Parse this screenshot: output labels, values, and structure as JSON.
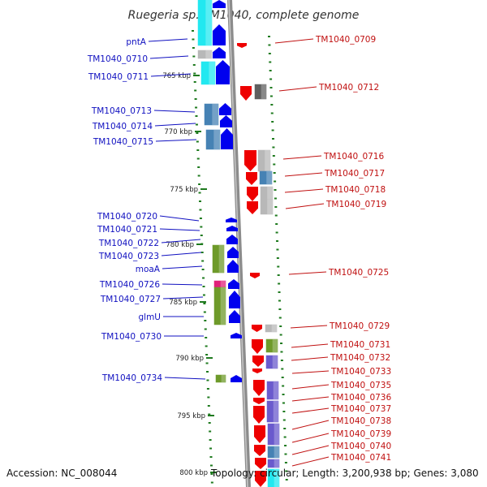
{
  "title": "Ruegeria sp. TM1040, complete genome",
  "footer": {
    "accession": "Accession: NC_008044",
    "topology": "Topology: circular; Length: 3,200,938 bp; Genes: 3,080"
  },
  "colors": {
    "left_label": "#1010c0",
    "right_label": "#c01010",
    "strand_plus": "#0000ee",
    "strand_minus": "#ee0000",
    "cyan": "#22e8f0",
    "gray": "#b8b8b8",
    "olive": "#6e9a2a",
    "purple": "#6a5acd",
    "steel": "#4682b4",
    "magenta": "#e0207a",
    "backbone": "#888888",
    "tick": "#1e7a1e"
  },
  "scale_labels": [
    "765 kbp",
    "770 kbp",
    "775 kbp",
    "780 kbp",
    "785 kbp",
    "790 kbp",
    "795 kbp",
    "800 kbp"
  ],
  "left_genes": [
    {
      "name": "pntA"
    },
    {
      "name": "TM1040_0710"
    },
    {
      "name": "TM1040_0711"
    },
    {
      "name": "TM1040_0713"
    },
    {
      "name": "TM1040_0714"
    },
    {
      "name": "TM1040_0715"
    },
    {
      "name": "TM1040_0720"
    },
    {
      "name": "TM1040_0721"
    },
    {
      "name": "TM1040_0722"
    },
    {
      "name": "TM1040_0723"
    },
    {
      "name": "moaA"
    },
    {
      "name": "TM1040_0726"
    },
    {
      "name": "TM1040_0727"
    },
    {
      "name": "glmU"
    },
    {
      "name": "TM1040_0730"
    },
    {
      "name": "TM1040_0734"
    }
  ],
  "right_genes": [
    {
      "name": "TM1040_0709"
    },
    {
      "name": "TM1040_0712"
    },
    {
      "name": "TM1040_0716"
    },
    {
      "name": "TM1040_0717"
    },
    {
      "name": "TM1040_0718"
    },
    {
      "name": "TM1040_0719"
    },
    {
      "name": "TM1040_0725"
    },
    {
      "name": "TM1040_0729"
    },
    {
      "name": "TM1040_0731"
    },
    {
      "name": "TM1040_0732"
    },
    {
      "name": "TM1040_0733"
    },
    {
      "name": "TM1040_0735"
    },
    {
      "name": "TM1040_0736"
    },
    {
      "name": "TM1040_0737"
    },
    {
      "name": "TM1040_0738"
    },
    {
      "name": "TM1040_0739"
    },
    {
      "name": "TM1040_0740"
    },
    {
      "name": "TM1040_0741"
    }
  ]
}
